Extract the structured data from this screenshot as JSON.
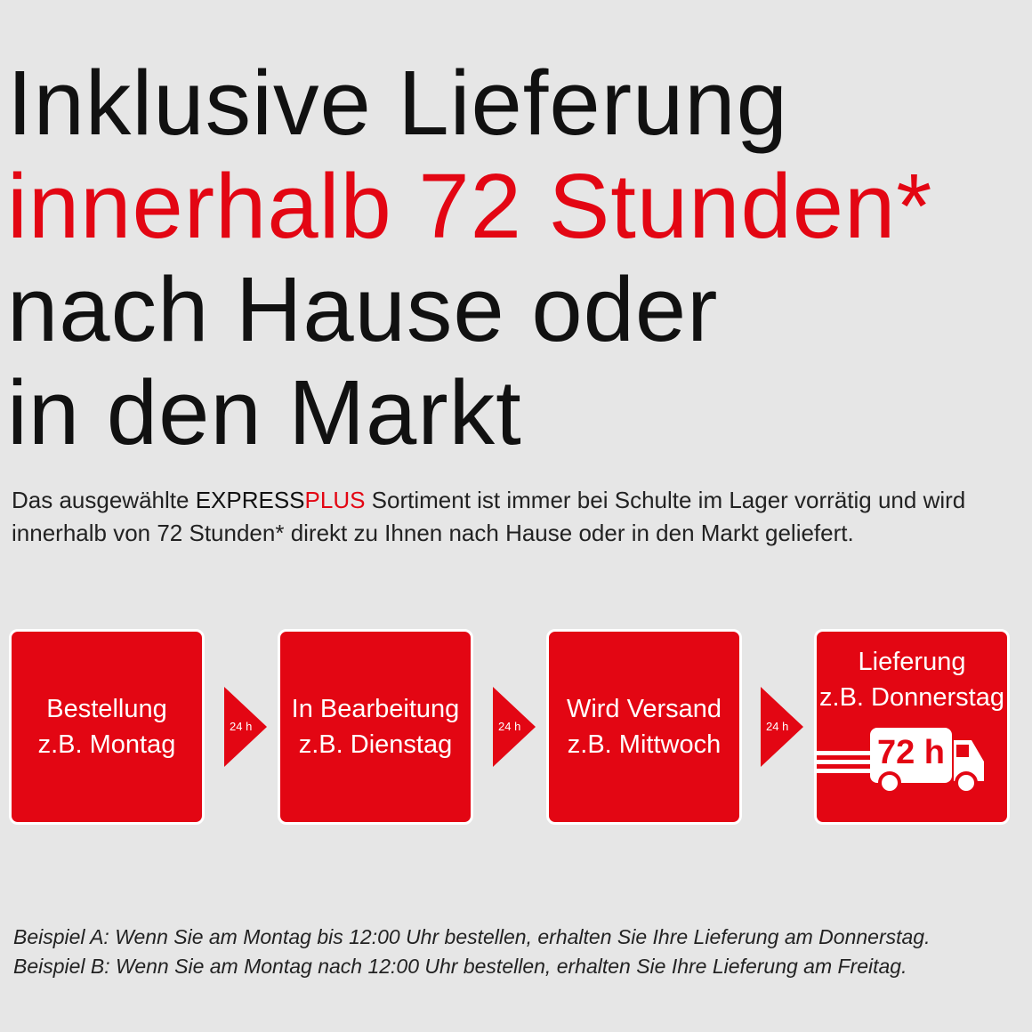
{
  "headline": {
    "line1": "Inklusive Lieferung",
    "line2": "innerhalb 72 Stunden*",
    "line3": "nach Hause oder",
    "line4": "in den Markt"
  },
  "intro": {
    "pre": "Das ausgewählte ",
    "brand_a": "EXPRESS",
    "brand_b": "PLUS",
    "post": " Sortiment ist immer bei Schulte im Lager vorrätig und wird",
    "line2": "innerhalb von 72 Stunden* direkt zu Ihnen nach Hause oder in den Markt geliefert."
  },
  "steps": [
    {
      "title": "Bestellung",
      "day": "z.B. Montag"
    },
    {
      "title": "In Bearbeitung",
      "day": "z.B. Dienstag"
    },
    {
      "title": "Wird Versand",
      "day": "z.B. Mittwoch"
    },
    {
      "title": "Lieferung",
      "day": "z.B. Donnerstag"
    }
  ],
  "arrow_label": "24 h",
  "truck_label": "72 h",
  "footnotes": [
    "Beispiel A: Wenn Sie am Montag bis 12:00 Uhr bestellen, erhalten Sie Ihre Lieferung am Donnerstag.",
    "Beispiel B: Wenn Sie am Montag nach 12:00 Uhr bestellen, erhalten Sie Ihre Lieferung am Freitag."
  ],
  "colors": {
    "accent": "#e30613",
    "background": "#e6e6e6"
  },
  "icons": [
    "arrow-right-icon",
    "truck-icon"
  ]
}
